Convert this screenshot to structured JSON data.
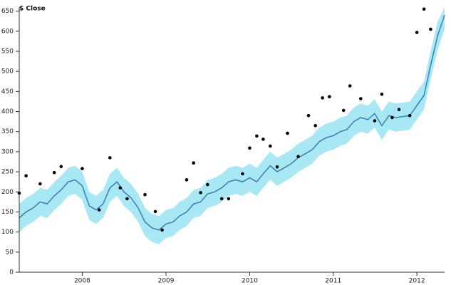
{
  "chart_data": {
    "type": "line",
    "title": "",
    "xlabel": "",
    "ylabel": "$ Close",
    "ylim": [
      0,
      660
    ],
    "xlim": [
      "2007-04-01",
      "2012-05-01"
    ],
    "grid": false,
    "y_ticks": [
      0,
      50,
      100,
      150,
      200,
      250,
      300,
      350,
      400,
      450,
      500,
      550,
      600,
      650
    ],
    "x_ticks": [
      {
        "date": "2008-01-01",
        "label": "2008"
      },
      {
        "date": "2009-01-01",
        "label": "2009"
      },
      {
        "date": "2010-01-01",
        "label": "2010"
      },
      {
        "date": "2011-01-01",
        "label": "2011"
      },
      {
        "date": "2012-01-01",
        "label": "2012"
      }
    ],
    "band_halfwidth": 35,
    "colors": {
      "line": "#3f84b4",
      "band": "#a8e8f4",
      "points": "#000000",
      "axis": "#333333"
    },
    "series": [
      {
        "type": "line",
        "x": [
          "2007-04-01",
          "2007-05-01",
          "2007-06-01",
          "2007-07-01",
          "2007-08-01",
          "2007-09-01",
          "2007-10-01",
          "2007-11-01",
          "2007-12-01",
          "2008-01-01",
          "2008-02-01",
          "2008-03-01",
          "2008-04-01",
          "2008-05-01",
          "2008-06-01",
          "2008-07-01",
          "2008-08-01",
          "2008-09-01",
          "2008-10-01",
          "2008-11-01",
          "2008-12-01",
          "2009-01-01",
          "2009-02-01",
          "2009-03-01",
          "2009-04-01",
          "2009-05-01",
          "2009-06-01",
          "2009-07-01",
          "2009-08-01",
          "2009-09-01",
          "2009-10-01",
          "2009-11-01",
          "2009-12-01",
          "2010-01-01",
          "2010-02-01",
          "2010-03-01",
          "2010-04-01",
          "2010-05-01",
          "2010-06-01",
          "2010-07-01",
          "2010-08-01",
          "2010-09-01",
          "2010-10-01",
          "2010-11-01",
          "2010-12-01",
          "2011-01-01",
          "2011-02-01",
          "2011-03-01",
          "2011-04-01",
          "2011-05-01",
          "2011-06-01",
          "2011-07-01",
          "2011-08-01",
          "2011-09-01",
          "2011-10-01",
          "2011-12-01",
          "2012-01-01",
          "2012-02-01",
          "2012-03-01",
          "2012-04-01",
          "2012-05-01"
        ],
        "values": [
          135,
          150,
          160,
          175,
          170,
          190,
          205,
          225,
          230,
          215,
          165,
          155,
          170,
          210,
          225,
          200,
          185,
          160,
          125,
          110,
          105,
          120,
          125,
          140,
          150,
          170,
          175,
          195,
          200,
          210,
          225,
          230,
          225,
          235,
          225,
          245,
          265,
          250,
          260,
          270,
          285,
          295,
          305,
          325,
          335,
          340,
          350,
          355,
          375,
          385,
          380,
          395,
          365,
          390,
          385,
          390,
          415,
          440,
          515,
          590,
          640
        ]
      },
      {
        "type": "scatter",
        "x": [
          "2007-04-01",
          "2007-05-01",
          "2007-07-01",
          "2007-09-01",
          "2007-10-01",
          "2008-01-01",
          "2008-03-15",
          "2008-05-01",
          "2008-06-15",
          "2008-07-15",
          "2008-10-01",
          "2008-11-15",
          "2008-12-15",
          "2009-04-01",
          "2009-05-01",
          "2009-06-01",
          "2009-07-01",
          "2009-09-01",
          "2009-10-01",
          "2009-12-01",
          "2010-01-01",
          "2010-02-01",
          "2010-03-01",
          "2010-04-01",
          "2010-05-01",
          "2010-06-15",
          "2010-08-01",
          "2010-09-15",
          "2010-10-15",
          "2010-11-15",
          "2010-12-15",
          "2011-02-15",
          "2011-03-15",
          "2011-05-01",
          "2011-07-01",
          "2011-08-01",
          "2011-09-15",
          "2011-10-15",
          "2011-12-01",
          "2012-01-01",
          "2012-02-01",
          "2012-03-01"
        ],
        "values": [
          197,
          240,
          220,
          248,
          263,
          258,
          155,
          285,
          210,
          183,
          193,
          151,
          105,
          230,
          272,
          198,
          218,
          183,
          183,
          245,
          309,
          339,
          331,
          314,
          262,
          346,
          288,
          390,
          365,
          434,
          437,
          403,
          464,
          432,
          377,
          443,
          385,
          405,
          390,
          597,
          655,
          605
        ]
      }
    ]
  }
}
